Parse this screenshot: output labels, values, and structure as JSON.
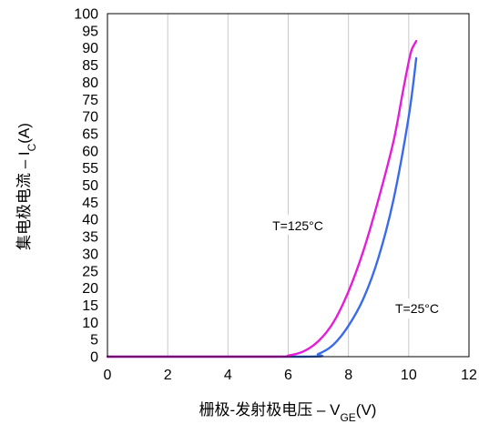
{
  "chart_data": {
    "type": "line",
    "title": "",
    "xlabel": {
      "text": "栅极-发射极电压 – V",
      "sub": "GE",
      "suffix": "(V)"
    },
    "ylabel": {
      "text": "集电极电流 – I",
      "sub": "C",
      "suffix": "(A)"
    },
    "xlim": [
      0,
      12
    ],
    "ylim": [
      0,
      100
    ],
    "x_ticks": [
      "0",
      "2",
      "4",
      "6",
      "8",
      "10",
      "12"
    ],
    "y_ticks": [
      "0",
      "5",
      "10",
      "15",
      "20",
      "25",
      "30",
      "35",
      "40",
      "45",
      "50",
      "55",
      "60",
      "65",
      "70",
      "75",
      "80",
      "85",
      "90",
      "95",
      "100"
    ],
    "grid": "vertical",
    "series": [
      {
        "name": "T=125°C",
        "color": "#e31ed6",
        "x": [
          0,
          5.5,
          6.0,
          6.5,
          7.0,
          7.5,
          8.0,
          8.5,
          9.0,
          9.5,
          9.8,
          10.0,
          10.1,
          10.25
        ],
        "y": [
          0,
          0,
          0.3,
          1.5,
          4.5,
          10,
          19,
          31,
          46,
          63,
          77,
          86,
          89.5,
          92
        ]
      },
      {
        "name": "T=25°C",
        "color": "#3a6be8",
        "x": [
          0,
          6.5,
          7.0,
          7.5,
          8.0,
          8.5,
          9.0,
          9.5,
          10.0,
          10.25
        ],
        "y": [
          0,
          0,
          0.8,
          3.5,
          9,
          17,
          29,
          46,
          70,
          87
        ]
      }
    ]
  }
}
